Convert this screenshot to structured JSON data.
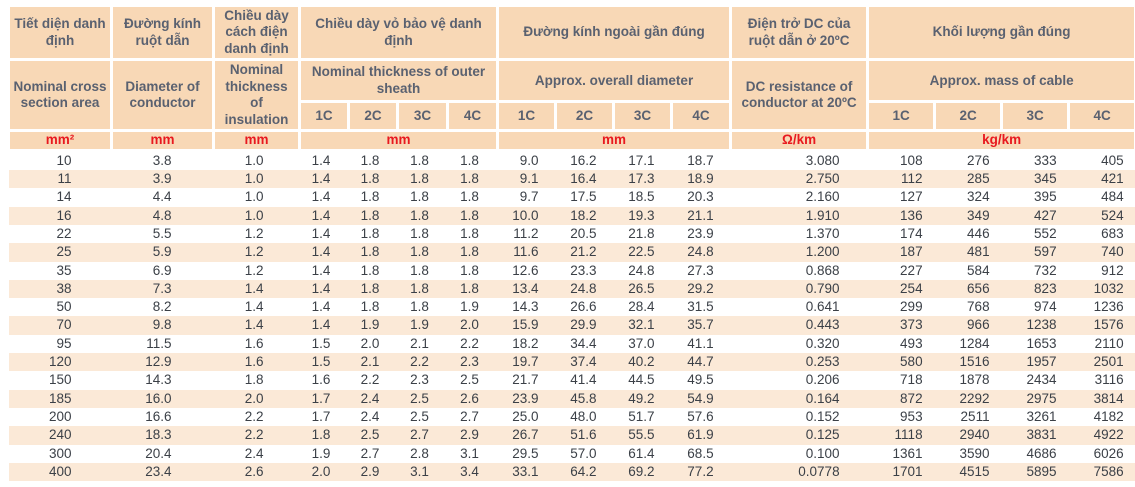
{
  "colors": {
    "header_bg": "#f8d8b6",
    "band_bg": "#fbe9d7",
    "header_text": "#5a6170",
    "unit_text": "#e8191f",
    "data_text": "#3b4047",
    "grid": "#ffffff"
  },
  "table": {
    "columns": {
      "cross_section": {
        "vi": "Tiết diện danh định",
        "en": "Nominal cross section area",
        "unit": "mm²"
      },
      "conductor_diameter": {
        "vi": "Đường kính ruột dẫn",
        "en": "Diameter of conductor",
        "unit": "mm"
      },
      "insulation_thickness": {
        "vi": "Chiều dày cách điện danh định",
        "en": "Nominal thickness of insulation",
        "unit": "mm"
      },
      "sheath_thickness": {
        "vi": "Chiều dày vỏ bảo vệ danh định",
        "en": "Nominal thickness of outer sheath",
        "unit": "mm",
        "subcolumns": [
          "1C",
          "2C",
          "3C",
          "4C"
        ]
      },
      "overall_diameter": {
        "vi": "Đường kính ngoài gần đúng",
        "en": "Approx. overall diameter",
        "unit": "mm",
        "subcolumns": [
          "1C",
          "2C",
          "3C",
          "4C"
        ]
      },
      "dc_resistance": {
        "vi": "Điện trở DC của ruột dẫn ở 20ºC",
        "en": "DC resistance of conductor at 20ºC",
        "unit": "Ω/km"
      },
      "mass": {
        "vi": "Khối lượng gần đúng",
        "en": "Approx. mass of cable",
        "unit": "kg/km",
        "subcolumns": [
          "1C",
          "2C",
          "3C",
          "4C"
        ]
      }
    },
    "rows": [
      [
        "10",
        "3.8",
        "1.0",
        "1.4",
        "1.8",
        "1.8",
        "1.8",
        "9.0",
        "16.2",
        "17.1",
        "18.7",
        "3.080",
        "108",
        "276",
        "333",
        "405"
      ],
      [
        "11",
        "3.9",
        "1.0",
        "1.4",
        "1.8",
        "1.8",
        "1.8",
        "9.1",
        "16.4",
        "17.3",
        "18.9",
        "2.750",
        "112",
        "285",
        "345",
        "421"
      ],
      [
        "14",
        "4.4",
        "1.0",
        "1.4",
        "1.8",
        "1.8",
        "1.8",
        "9.7",
        "17.5",
        "18.5",
        "20.3",
        "2.160",
        "127",
        "324",
        "395",
        "484"
      ],
      [
        "16",
        "4.8",
        "1.0",
        "1.4",
        "1.8",
        "1.8",
        "1.8",
        "10.0",
        "18.2",
        "19.3",
        "21.1",
        "1.910",
        "136",
        "349",
        "427",
        "524"
      ],
      [
        "22",
        "5.5",
        "1.2",
        "1.4",
        "1.8",
        "1.8",
        "1.8",
        "11.2",
        "20.5",
        "21.8",
        "23.9",
        "1.370",
        "174",
        "446",
        "552",
        "683"
      ],
      [
        "25",
        "5.9",
        "1.2",
        "1.4",
        "1.8",
        "1.8",
        "1.8",
        "11.6",
        "21.2",
        "22.5",
        "24.8",
        "1.200",
        "187",
        "481",
        "597",
        "740"
      ],
      [
        "35",
        "6.9",
        "1.2",
        "1.4",
        "1.8",
        "1.8",
        "1.8",
        "12.6",
        "23.3",
        "24.8",
        "27.3",
        "0.868",
        "227",
        "584",
        "732",
        "912"
      ],
      [
        "38",
        "7.3",
        "1.4",
        "1.4",
        "1.8",
        "1.8",
        "1.8",
        "13.4",
        "24.8",
        "26.5",
        "29.2",
        "0.790",
        "254",
        "656",
        "823",
        "1032"
      ],
      [
        "50",
        "8.2",
        "1.4",
        "1.4",
        "1.8",
        "1.8",
        "1.9",
        "14.3",
        "26.6",
        "28.4",
        "31.5",
        "0.641",
        "299",
        "768",
        "974",
        "1236"
      ],
      [
        "70",
        "9.8",
        "1.4",
        "1.4",
        "1.9",
        "1.9",
        "2.0",
        "15.9",
        "29.9",
        "32.1",
        "35.7",
        "0.443",
        "373",
        "966",
        "1238",
        "1576"
      ],
      [
        "95",
        "11.5",
        "1.6",
        "1.5",
        "2.0",
        "2.1",
        "2.2",
        "18.2",
        "34.4",
        "37.0",
        "41.1",
        "0.320",
        "493",
        "1284",
        "1653",
        "2110"
      ],
      [
        "120",
        "12.9",
        "1.6",
        "1.5",
        "2.1",
        "2.2",
        "2.3",
        "19.7",
        "37.4",
        "40.2",
        "44.7",
        "0.253",
        "580",
        "1516",
        "1957",
        "2501"
      ],
      [
        "150",
        "14.3",
        "1.8",
        "1.6",
        "2.2",
        "2.3",
        "2.5",
        "21.7",
        "41.4",
        "44.5",
        "49.5",
        "0.206",
        "718",
        "1878",
        "2434",
        "3116"
      ],
      [
        "185",
        "16.0",
        "2.0",
        "1.7",
        "2.4",
        "2.5",
        "2.6",
        "23.9",
        "45.8",
        "49.2",
        "54.9",
        "0.164",
        "872",
        "2292",
        "2975",
        "3814"
      ],
      [
        "200",
        "16.6",
        "2.2",
        "1.7",
        "2.4",
        "2.5",
        "2.7",
        "25.0",
        "48.0",
        "51.7",
        "57.6",
        "0.152",
        "953",
        "2511",
        "3261",
        "4182"
      ],
      [
        "240",
        "18.3",
        "2.2",
        "1.8",
        "2.5",
        "2.7",
        "2.9",
        "26.7",
        "51.6",
        "55.5",
        "61.9",
        "0.125",
        "1118",
        "2940",
        "3831",
        "4922"
      ],
      [
        "300",
        "20.4",
        "2.4",
        "1.9",
        "2.7",
        "2.8",
        "3.1",
        "29.5",
        "57.0",
        "61.4",
        "68.5",
        "0.100",
        "1361",
        "3590",
        "4686",
        "6026"
      ],
      [
        "400",
        "23.4",
        "2.6",
        "2.0",
        "2.9",
        "3.1",
        "3.4",
        "33.1",
        "64.2",
        "69.2",
        "77.2",
        "0.0778",
        "1701",
        "4515",
        "5895",
        "7586"
      ]
    ]
  }
}
